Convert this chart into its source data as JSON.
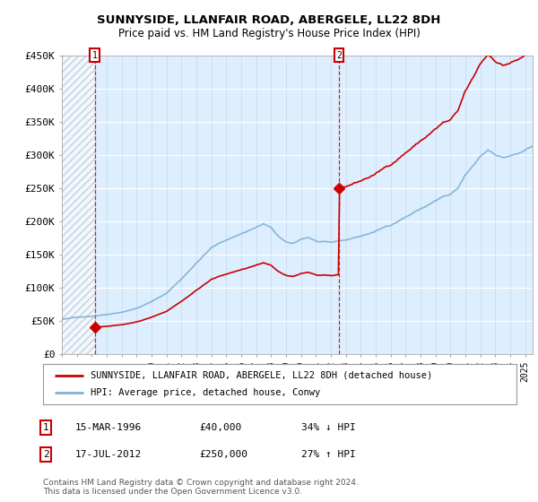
{
  "title": "SUNNYSIDE, LLANFAIR ROAD, ABERGELE, LL22 8DH",
  "subtitle": "Price paid vs. HM Land Registry's House Price Index (HPI)",
  "legend_line1": "SUNNYSIDE, LLANFAIR ROAD, ABERGELE, LL22 8DH (detached house)",
  "legend_line2": "HPI: Average price, detached house, Conwy",
  "annotation1_label": "1",
  "annotation1_date": "15-MAR-1996",
  "annotation1_price": "£40,000",
  "annotation1_hpi": "34% ↓ HPI",
  "annotation2_label": "2",
  "annotation2_date": "17-JUL-2012",
  "annotation2_price": "£250,000",
  "annotation2_hpi": "27% ↑ HPI",
  "copyright": "Contains HM Land Registry data © Crown copyright and database right 2024.\nThis data is licensed under the Open Government Licence v3.0.",
  "sale_color": "#cc0000",
  "hpi_color": "#7eb0d5",
  "background_plot": "#ddeeff",
  "ylim": [
    0,
    450000
  ],
  "yticks": [
    0,
    50000,
    100000,
    150000,
    200000,
    250000,
    300000,
    350000,
    400000,
    450000
  ],
  "ytick_labels": [
    "£0",
    "£50K",
    "£100K",
    "£150K",
    "£200K",
    "£250K",
    "£300K",
    "£350K",
    "£400K",
    "£450K"
  ],
  "sale1_x": 1996.21,
  "sale1_y": 40000,
  "sale2_x": 2012.54,
  "sale2_y": 250000,
  "xmin": 1994.0,
  "xmax": 2025.5
}
